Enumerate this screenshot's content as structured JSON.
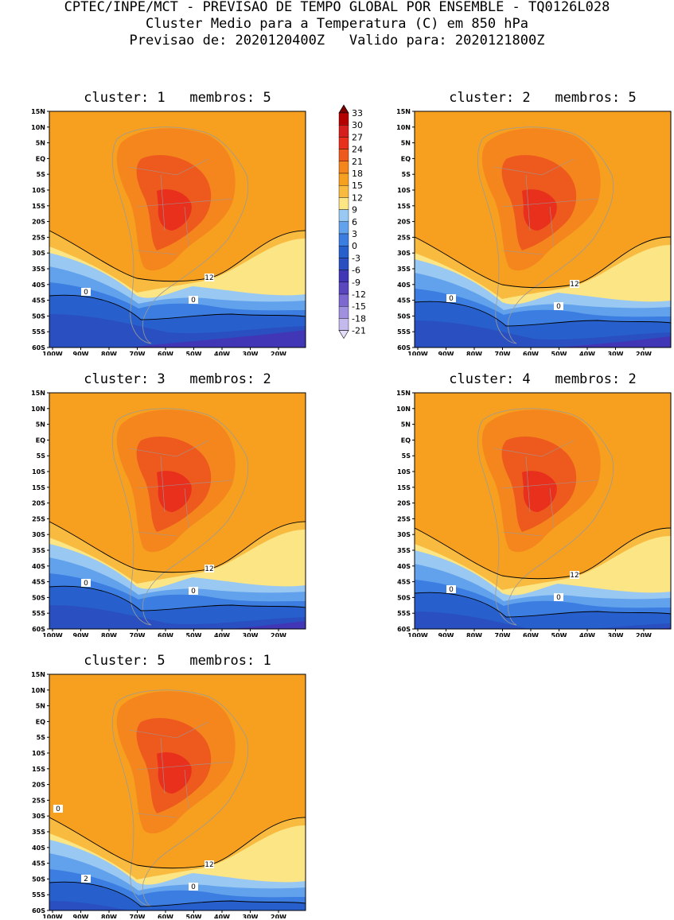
{
  "header": {
    "line1": "CPTEC/INPE/MCT - PREVISAO DE TEMPO GLOBAL POR ENSEMBLE - TQ0126L028",
    "line2": "Cluster Medio para a Temperatura (C) em 850 hPa",
    "line3": "Previsao de: 2020120400Z   Valido para: 2020121800Z"
  },
  "axes": {
    "lat_labels": [
      "15N",
      "10N",
      "5N",
      "EQ",
      "5S",
      "10S",
      "15S",
      "20S",
      "25S",
      "30S",
      "35S",
      "40S",
      "45S",
      "50S",
      "55S",
      "60S"
    ],
    "lon_labels": [
      "100W",
      "90W",
      "80W",
      "70W",
      "60W",
      "50W",
      "40W",
      "30W",
      "20W"
    ]
  },
  "colorbar": {
    "levels": [
      "33",
      "30",
      "27",
      "24",
      "21",
      "18",
      "15",
      "12",
      "9",
      "6",
      "3",
      "0",
      "-3",
      "-6",
      "-9",
      "-12",
      "-15",
      "-18",
      "-21"
    ],
    "colors": [
      "#7a0000",
      "#b40000",
      "#d51f1f",
      "#e8301d",
      "#ee5a1e",
      "#f5861e",
      "#f7a01f",
      "#f8bb3f",
      "#fce585",
      "#99c8f2",
      "#62a2ec",
      "#3b7de0",
      "#2760cc",
      "#2a4fc0",
      "#4136b5",
      "#5a46bf",
      "#7c68cf",
      "#a18fdf",
      "#c6b9ee",
      "#e4dcf8"
    ]
  },
  "panels": [
    {
      "title": "cluster: 1   membros: 5",
      "contour_labels": [
        "12",
        "0",
        "0"
      ]
    },
    {
      "title": "cluster: 2   membros: 5",
      "contour_labels": [
        "12",
        "0",
        "0"
      ]
    },
    {
      "title": "cluster: 3   membros: 2",
      "contour_labels": [
        "12",
        "0",
        "0"
      ]
    },
    {
      "title": "cluster: 4   membros: 2",
      "contour_labels": [
        "12",
        "0",
        "0"
      ]
    },
    {
      "title": "cluster: 5   membros: 1",
      "contour_labels": [
        "12",
        "2",
        "0",
        "0"
      ]
    }
  ]
}
